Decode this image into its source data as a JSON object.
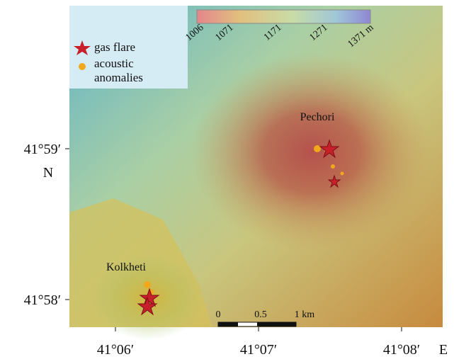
{
  "map": {
    "colorbar": {
      "labels": [
        "1006",
        "1071",
        "1171",
        "1271",
        "1371 m"
      ]
    },
    "legend": {
      "items": [
        "gas flare",
        "acoustic anomalies"
      ]
    },
    "places": [
      "Pechori",
      "Kolkheti"
    ],
    "scale_bar": {
      "labels": [
        "0",
        "0.5",
        "1 km"
      ]
    },
    "lat_labels": [
      "41°59′",
      "41°58′"
    ],
    "lat_hemisphere": "N",
    "lon_labels": [
      "41°06′",
      "41°07′",
      "41°08′"
    ],
    "lon_hemisphere": "E"
  }
}
